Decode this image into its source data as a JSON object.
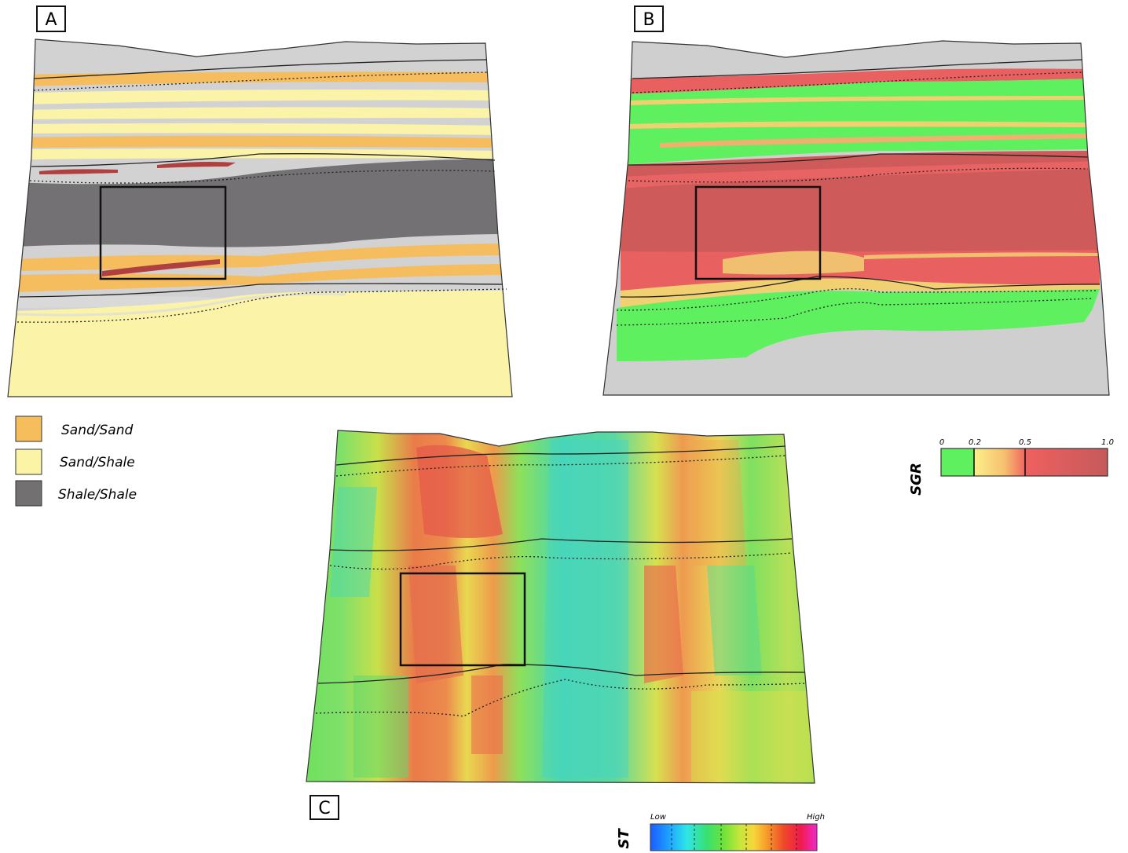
{
  "panels": {
    "a": {
      "label": "A"
    },
    "b": {
      "label": "B"
    },
    "c": {
      "label": "C"
    }
  },
  "legend": {
    "items": [
      {
        "label": "Sand/Sand",
        "color": "#f6bd5c"
      },
      {
        "label": "Sand/Shale",
        "color": "#fbf3a6"
      },
      {
        "label": "Shale/Shale",
        "color": "#727071"
      }
    ]
  },
  "sgr_scale": {
    "title": "SGR",
    "ticks": [
      "0",
      "0.2",
      "0.5",
      "1.0"
    ],
    "colors": {
      "green": "#5ef05e",
      "yellow": "#fbe37a",
      "red_light": "#f06060",
      "red_dark": "#c55a5a"
    }
  },
  "st_scale": {
    "title": "ST",
    "low_label": "Low",
    "high_label": "High",
    "colors": [
      "#1a5cff",
      "#1ea8ff",
      "#2fe6e6",
      "#38e070",
      "#6ee23a",
      "#c8e63a",
      "#f7d63a",
      "#f79a2a",
      "#f04a2a",
      "#f01a4a",
      "#f02acb"
    ]
  },
  "fault_colors": {
    "gray": "#c8c8c8",
    "shale": "#737173",
    "sand_sand": "#f5bd5e",
    "sand_shale": "#faf3a8",
    "red_streak": "#b04040"
  }
}
